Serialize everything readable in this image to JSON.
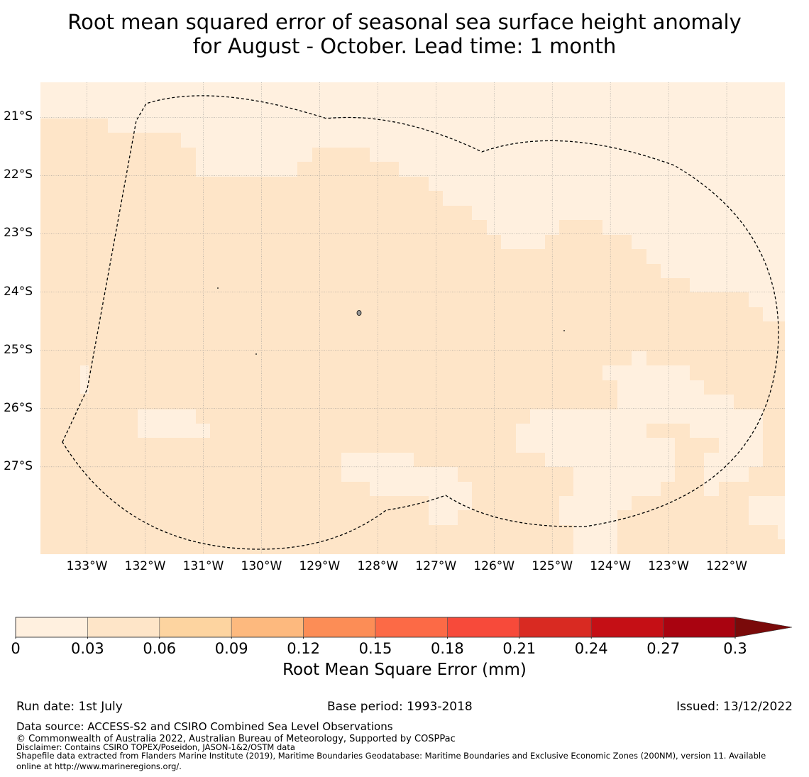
{
  "title": {
    "line1": "Root mean squared error of seasonal sea surface height anomaly",
    "line2": "for August - October. Lead time: 1 month"
  },
  "map": {
    "lat_labels": [
      "21°S",
      "22°S",
      "23°S",
      "24°S",
      "25°S",
      "26°S",
      "27°S"
    ],
    "lon_labels": [
      "133°W",
      "132°W",
      "131°W",
      "130°W",
      "129°W",
      "128°W",
      "127°W",
      "126°W",
      "125°W",
      "124°W",
      "123°W",
      "122°W"
    ],
    "lat_range": [
      -28.5,
      -20.4
    ],
    "lon_range": [
      -133.8,
      -121.0
    ],
    "field_value_bins": [
      "0-0.03",
      "0.03-0.06"
    ],
    "boundary_style": "dashed"
  },
  "colorbar": {
    "ticks": [
      "0",
      "0.03",
      "0.06",
      "0.09",
      "0.12",
      "0.15",
      "0.18",
      "0.21",
      "0.24",
      "0.27",
      "0.3"
    ],
    "colors": [
      "#fff0df",
      "#fee5c8",
      "#fdd4a0",
      "#fdb97e",
      "#fc8d56",
      "#fc6a46",
      "#f74a3a",
      "#d92a22",
      "#c50f15",
      "#a90310",
      "#7a0a0a"
    ],
    "label": "Root Mean Square Error (mm)",
    "extend": "max"
  },
  "footer": {
    "run_date": "Run date: 1st July",
    "base_period": "Base period: 1993-2018",
    "issued": "Issued: 13/12/2022",
    "data_source": "Data source: ACCESS-S2 and CSIRO Combined Sea Level Observations",
    "copyright": "© Commonwealth of Australia 2022, Australian Bureau of Meteorology, Supported by COSPPac",
    "disclaimer": "Disclaimer: Contains CSIRO TOPEX/Poseidon, JASON-1&2/OSTM data",
    "shapefile_line1": "Shapefile data extracted from Flanders Marine Institute (2019), Maritime Boundaries Geodatabase: Maritime Boundaries and Exclusive Economic Zones (200NM), version 11. Available",
    "shapefile_line2": "online at http://www.marineregions.org/."
  }
}
